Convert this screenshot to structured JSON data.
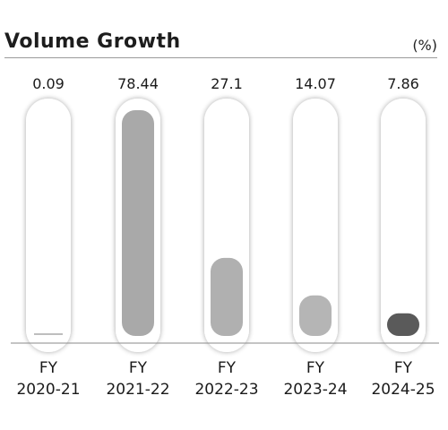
{
  "title": "Volume Growth",
  "unit": "(%)",
  "chart_data": {
    "type": "bar",
    "title": "Volume Growth",
    "ylabel": "(%)",
    "categories": [
      [
        "FY",
        "2020-21"
      ],
      [
        "FY",
        "2021-22"
      ],
      [
        "FY",
        "2022-23"
      ],
      [
        "FY",
        "2023-24"
      ],
      [
        "FY",
        "2024-25"
      ]
    ],
    "values": [
      0.09,
      78.44,
      27.1,
      14.07,
      7.86
    ],
    "value_labels": [
      "0.09",
      "78.44",
      "27.1",
      "14.07",
      "7.86"
    ],
    "bar_colors": [
      "#a9a9a9",
      "#a9a9a9",
      "#b0b0b0",
      "#b5b5b5",
      "#5a5a5a"
    ],
    "ylim": [
      0,
      78.44
    ],
    "grid": false,
    "legend": "none"
  }
}
